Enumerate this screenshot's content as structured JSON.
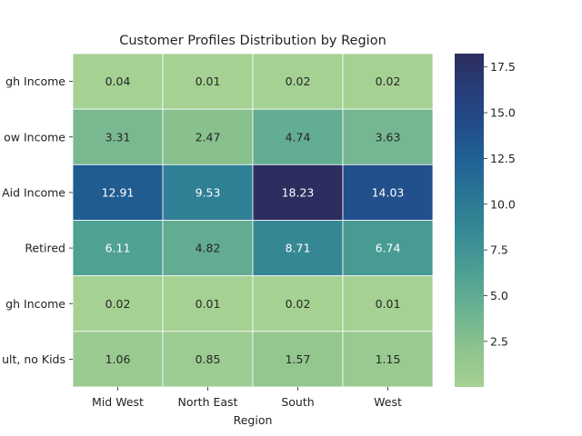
{
  "chart_data": {
    "type": "heatmap",
    "title": "Customer Profiles Distribution by Region",
    "xlabel": "Region",
    "ylabel": "",
    "columns": [
      "Mid West",
      "North East",
      "South",
      "West"
    ],
    "rows": [
      "gh Income",
      "ow Income",
      "Aid Income",
      "Retired",
      "gh Income",
      "ult, no Kids"
    ],
    "values": [
      [
        0.04,
        0.01,
        0.02,
        0.02
      ],
      [
        3.31,
        2.47,
        4.74,
        3.63
      ],
      [
        12.91,
        9.53,
        18.23,
        14.03
      ],
      [
        6.11,
        4.82,
        8.71,
        6.74
      ],
      [
        0.02,
        0.01,
        0.02,
        0.01
      ],
      [
        1.06,
        0.85,
        1.57,
        1.15
      ]
    ],
    "value_labels": [
      [
        "0.04",
        "0.01",
        "0.02",
        "0.02"
      ],
      [
        "3.31",
        "2.47",
        "4.74",
        "3.63"
      ],
      [
        "12.91",
        "9.53",
        "18.23",
        "14.03"
      ],
      [
        "6.11",
        "4.82",
        "8.71",
        "6.74"
      ],
      [
        "0.02",
        "0.01",
        "0.02",
        "0.01"
      ],
      [
        "1.06",
        "0.85",
        "1.57",
        "1.15"
      ]
    ],
    "colorbar": {
      "min": 0.01,
      "max": 18.23,
      "ticks": [
        2.5,
        5.0,
        7.5,
        10.0,
        12.5,
        15.0,
        17.5
      ],
      "tick_labels": [
        "2.5",
        "5.0",
        "7.5",
        "10.0",
        "12.5",
        "15.0",
        "17.5"
      ]
    },
    "colormap": "crest",
    "colors": [
      "#a5d193",
      "#8fc48d",
      "#6db391",
      "#4fa193",
      "#3a8d94",
      "#2b7995",
      "#216495",
      "#214e8b",
      "#273d79",
      "#2b2e5e"
    ],
    "grid": false,
    "legend": "colorbar-right"
  }
}
